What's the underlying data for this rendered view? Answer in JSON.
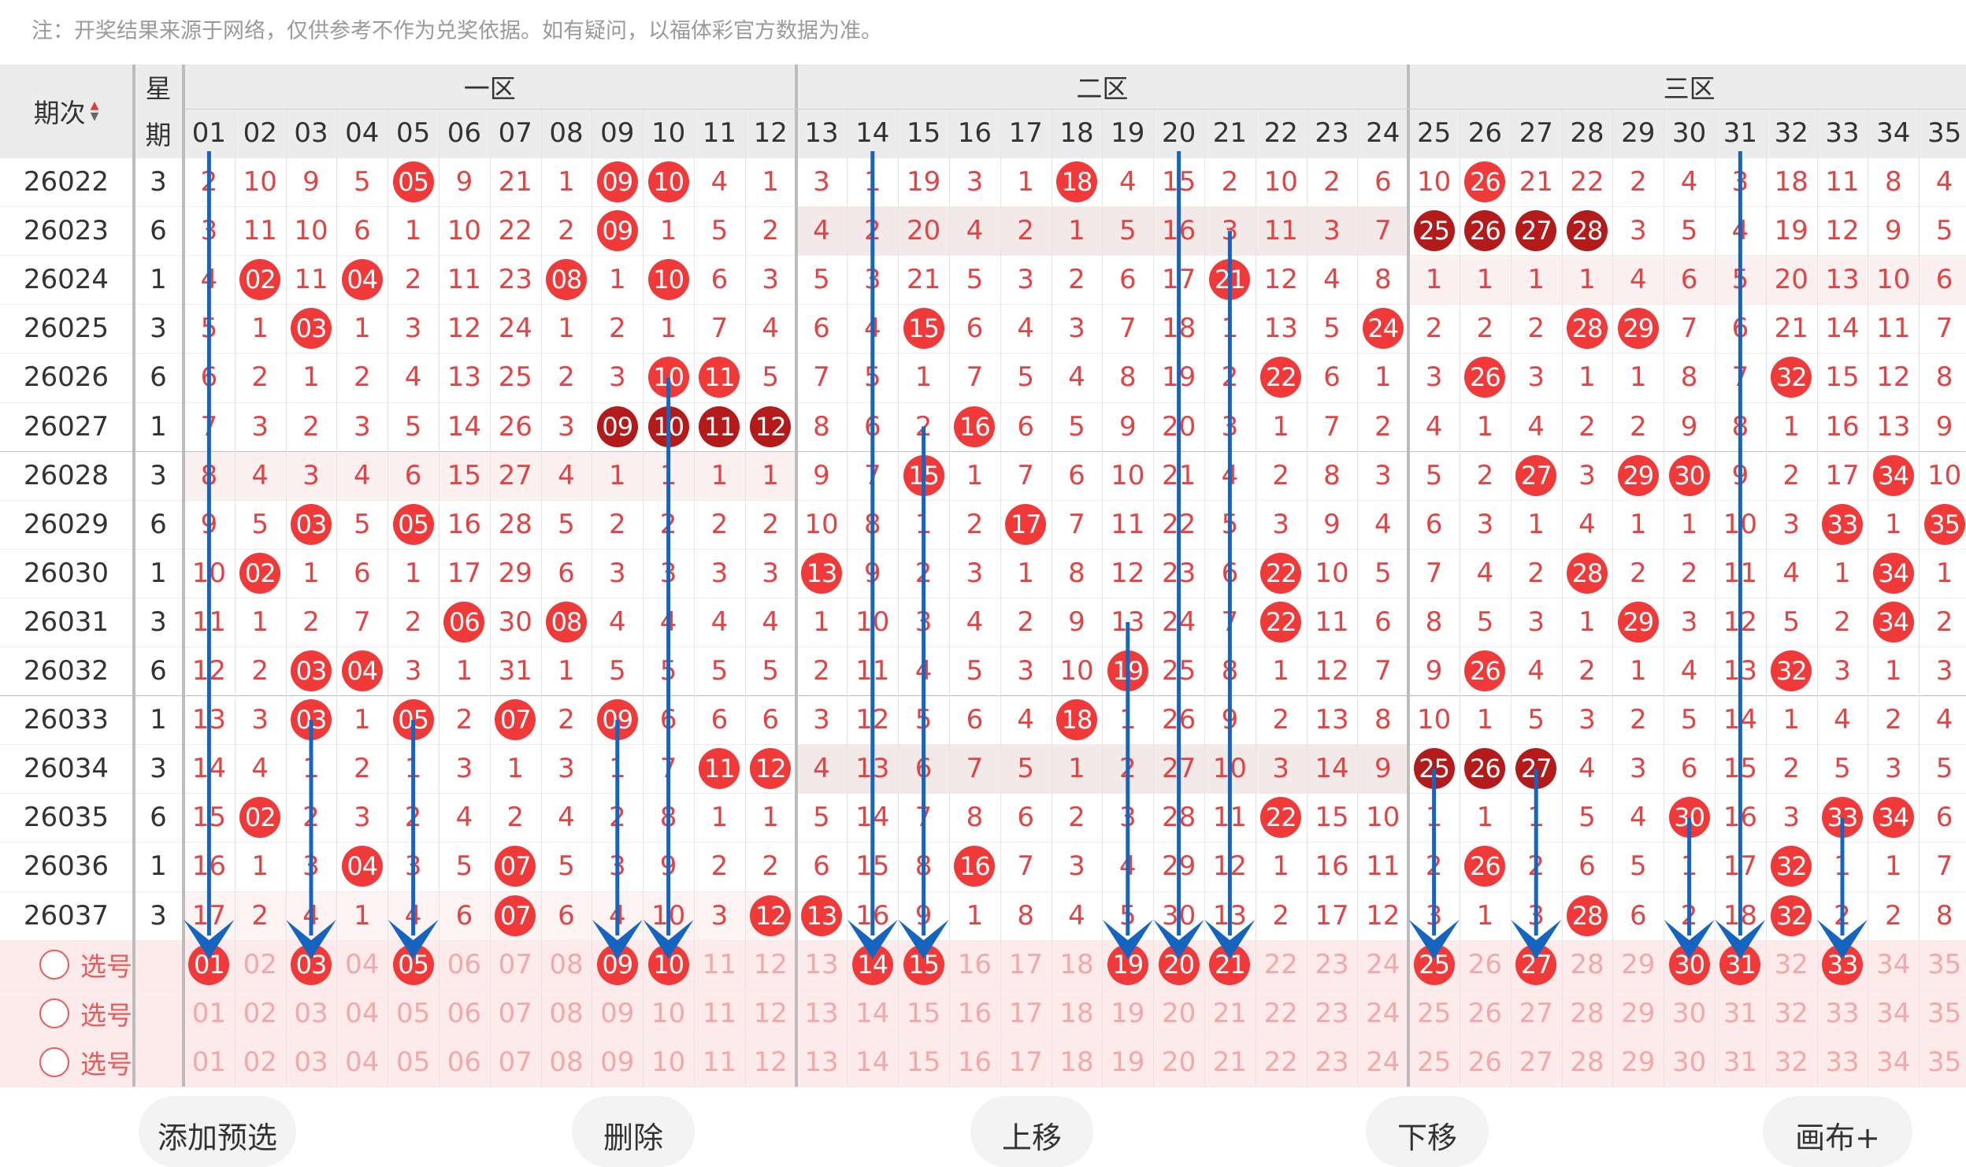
{
  "note": "注：开奖结果来源于网络，仅供参考不作为兑奖依据。如有疑问，以福体彩官方数据为准。",
  "header": {
    "period_label": "期次",
    "sort_icon": "sort-updown-icon",
    "week_label_top": "星",
    "week_label_bottom": "期",
    "zones": [
      "一区",
      "二区",
      "三区"
    ]
  },
  "columns": [
    "01",
    "02",
    "03",
    "04",
    "05",
    "06",
    "07",
    "08",
    "09",
    "10",
    "11",
    "12",
    "13",
    "14",
    "15",
    "16",
    "17",
    "18",
    "19",
    "20",
    "21",
    "22",
    "23",
    "24",
    "25",
    "26",
    "27",
    "28",
    "29",
    "30",
    "31",
    "32",
    "33",
    "34",
    "35"
  ],
  "rows": [
    {
      "period": "26022",
      "week": "3",
      "cells": [
        "2",
        "10",
        "9",
        "5",
        "05",
        "9",
        "21",
        "1",
        "09",
        "10",
        "4",
        "1",
        "3",
        "1",
        "19",
        "3",
        "1",
        "18",
        "4",
        "15",
        "2",
        "10",
        "2",
        "6",
        "10",
        "26",
        "21",
        "22",
        "2",
        "4",
        "3",
        "18",
        "11",
        "8",
        "4"
      ],
      "balls": [
        5,
        9,
        10,
        18,
        26
      ]
    },
    {
      "period": "26023",
      "week": "6",
      "cells": [
        "3",
        "11",
        "10",
        "6",
        "1",
        "10",
        "22",
        "2",
        "09",
        "1",
        "5",
        "2",
        "4",
        "2",
        "20",
        "4",
        "2",
        "1",
        "5",
        "16",
        "3",
        "11",
        "3",
        "7",
        "25",
        "26",
        "27",
        "28",
        "3",
        "5",
        "4",
        "19",
        "12",
        "9",
        "5"
      ],
      "balls": [
        9,
        25,
        26,
        27,
        28
      ]
    },
    {
      "period": "26024",
      "week": "1",
      "cells": [
        "4",
        "02",
        "11",
        "04",
        "2",
        "11",
        "23",
        "08",
        "1",
        "10",
        "6",
        "3",
        "5",
        "3",
        "21",
        "5",
        "3",
        "2",
        "6",
        "17",
        "21",
        "12",
        "4",
        "8",
        "1",
        "1",
        "1",
        "1",
        "4",
        "6",
        "5",
        "20",
        "13",
        "10",
        "6"
      ],
      "balls": [
        2,
        4,
        8,
        10,
        21
      ]
    },
    {
      "period": "26025",
      "week": "3",
      "cells": [
        "5",
        "1",
        "03",
        "1",
        "3",
        "12",
        "24",
        "1",
        "2",
        "1",
        "7",
        "4",
        "6",
        "4",
        "15",
        "6",
        "4",
        "3",
        "7",
        "18",
        "1",
        "13",
        "5",
        "24",
        "2",
        "2",
        "2",
        "28",
        "29",
        "7",
        "6",
        "21",
        "14",
        "11",
        "7"
      ],
      "balls": [
        3,
        15,
        24,
        28,
        29
      ]
    },
    {
      "period": "26026",
      "week": "6",
      "cells": [
        "6",
        "2",
        "1",
        "2",
        "4",
        "13",
        "25",
        "2",
        "3",
        "10",
        "11",
        "5",
        "7",
        "5",
        "1",
        "7",
        "5",
        "4",
        "8",
        "19",
        "2",
        "22",
        "6",
        "1",
        "3",
        "26",
        "3",
        "1",
        "1",
        "8",
        "7",
        "32",
        "15",
        "12",
        "8"
      ],
      "balls": [
        10,
        11,
        22,
        26,
        32
      ]
    },
    {
      "period": "26027",
      "week": "1",
      "cells": [
        "7",
        "3",
        "2",
        "3",
        "5",
        "14",
        "26",
        "3",
        "09",
        "10",
        "11",
        "12",
        "8",
        "6",
        "2",
        "16",
        "6",
        "5",
        "9",
        "20",
        "3",
        "1",
        "7",
        "2",
        "4",
        "1",
        "4",
        "2",
        "2",
        "9",
        "8",
        "1",
        "16",
        "13",
        "9"
      ],
      "balls": [
        9,
        10,
        11,
        12,
        16
      ]
    },
    {
      "period": "26028",
      "week": "3",
      "cells": [
        "8",
        "4",
        "3",
        "4",
        "6",
        "15",
        "27",
        "4",
        "1",
        "1",
        "1",
        "1",
        "9",
        "7",
        "15",
        "1",
        "7",
        "6",
        "10",
        "21",
        "4",
        "2",
        "8",
        "3",
        "5",
        "2",
        "27",
        "3",
        "29",
        "30",
        "9",
        "2",
        "17",
        "34",
        "10"
      ],
      "balls": [
        15,
        27,
        29,
        30,
        34
      ]
    },
    {
      "period": "26029",
      "week": "6",
      "cells": [
        "9",
        "5",
        "03",
        "5",
        "05",
        "16",
        "28",
        "5",
        "2",
        "2",
        "2",
        "2",
        "10",
        "8",
        "1",
        "2",
        "17",
        "7",
        "11",
        "22",
        "5",
        "3",
        "9",
        "4",
        "6",
        "3",
        "1",
        "4",
        "1",
        "1",
        "10",
        "3",
        "33",
        "1",
        "35"
      ],
      "balls": [
        3,
        5,
        17,
        33,
        35
      ]
    },
    {
      "period": "26030",
      "week": "1",
      "cells": [
        "10",
        "02",
        "1",
        "6",
        "1",
        "17",
        "29",
        "6",
        "3",
        "3",
        "3",
        "3",
        "13",
        "9",
        "2",
        "3",
        "1",
        "8",
        "12",
        "23",
        "6",
        "22",
        "10",
        "5",
        "7",
        "4",
        "2",
        "28",
        "2",
        "2",
        "11",
        "4",
        "1",
        "34",
        "1"
      ],
      "balls": [
        2,
        13,
        22,
        28,
        34
      ]
    },
    {
      "period": "26031",
      "week": "3",
      "cells": [
        "11",
        "1",
        "2",
        "7",
        "2",
        "06",
        "30",
        "08",
        "4",
        "4",
        "4",
        "4",
        "1",
        "10",
        "3",
        "4",
        "2",
        "9",
        "13",
        "24",
        "7",
        "22",
        "11",
        "6",
        "8",
        "5",
        "3",
        "1",
        "29",
        "3",
        "12",
        "5",
        "2",
        "34",
        "2"
      ],
      "balls": [
        6,
        8,
        22,
        29,
        34
      ]
    },
    {
      "period": "26032",
      "week": "6",
      "cells": [
        "12",
        "2",
        "03",
        "04",
        "3",
        "1",
        "31",
        "1",
        "5",
        "5",
        "5",
        "5",
        "2",
        "11",
        "4",
        "5",
        "3",
        "10",
        "19",
        "25",
        "8",
        "1",
        "12",
        "7",
        "9",
        "26",
        "4",
        "2",
        "1",
        "4",
        "13",
        "32",
        "3",
        "1",
        "3"
      ],
      "balls": [
        3,
        4,
        19,
        26,
        32
      ]
    },
    {
      "period": "26033",
      "week": "1",
      "cells": [
        "13",
        "3",
        "03",
        "1",
        "05",
        "2",
        "07",
        "2",
        "09",
        "6",
        "6",
        "6",
        "3",
        "12",
        "5",
        "6",
        "4",
        "18",
        "1",
        "26",
        "9",
        "2",
        "13",
        "8",
        "10",
        "1",
        "5",
        "3",
        "2",
        "5",
        "14",
        "1",
        "4",
        "2",
        "4"
      ],
      "balls": [
        3,
        5,
        7,
        9,
        18
      ]
    },
    {
      "period": "26034",
      "week": "3",
      "cells": [
        "14",
        "4",
        "1",
        "2",
        "1",
        "3",
        "1",
        "3",
        "1",
        "7",
        "11",
        "12",
        "4",
        "13",
        "6",
        "7",
        "5",
        "1",
        "2",
        "27",
        "10",
        "3",
        "14",
        "9",
        "25",
        "26",
        "27",
        "4",
        "3",
        "6",
        "15",
        "2",
        "5",
        "3",
        "5"
      ],
      "balls": [
        11,
        12,
        25,
        26,
        27
      ]
    },
    {
      "period": "26035",
      "week": "6",
      "cells": [
        "15",
        "02",
        "2",
        "3",
        "2",
        "4",
        "2",
        "4",
        "2",
        "8",
        "1",
        "1",
        "5",
        "14",
        "7",
        "8",
        "6",
        "2",
        "3",
        "28",
        "11",
        "22",
        "15",
        "10",
        "1",
        "1",
        "1",
        "5",
        "4",
        "30",
        "16",
        "3",
        "33",
        "34",
        "6"
      ],
      "balls": [
        2,
        22,
        30,
        33,
        34
      ]
    },
    {
      "period": "26036",
      "week": "1",
      "cells": [
        "16",
        "1",
        "3",
        "04",
        "3",
        "5",
        "07",
        "5",
        "3",
        "9",
        "2",
        "2",
        "6",
        "15",
        "8",
        "16",
        "7",
        "3",
        "4",
        "29",
        "12",
        "1",
        "16",
        "11",
        "2",
        "26",
        "2",
        "6",
        "5",
        "1",
        "17",
        "32",
        "1",
        "1",
        "7"
      ],
      "balls": [
        4,
        7,
        16,
        26,
        32
      ]
    },
    {
      "period": "26037",
      "week": "3",
      "cells": [
        "17",
        "2",
        "4",
        "1",
        "4",
        "6",
        "07",
        "6",
        "4",
        "10",
        "3",
        "12",
        "13",
        "16",
        "9",
        "1",
        "8",
        "4",
        "5",
        "30",
        "13",
        "2",
        "17",
        "12",
        "3",
        "1",
        "3",
        "28",
        "6",
        "2",
        "18",
        "32",
        "2",
        "2",
        "8"
      ],
      "balls": [
        7,
        12,
        13,
        28,
        32
      ]
    }
  ],
  "pick_rows": [
    {
      "label": "选号",
      "selected": [
        1,
        3,
        5,
        9,
        10,
        14,
        15,
        19,
        20,
        21,
        25,
        27,
        30,
        31,
        33
      ]
    },
    {
      "label": "选号",
      "selected": []
    },
    {
      "label": "选号",
      "selected": []
    }
  ],
  "toolbar": {
    "add_label": "添加预选",
    "delete_label": "删除",
    "up_label": "上移",
    "down_label": "下移",
    "draw_label": "画布+"
  },
  "colors": {
    "ball_red": "#f03a3a",
    "ball_dark": "#b31a1a",
    "number_text": "#e24444",
    "arrow": "#1565c0",
    "header_bg": "#ececec",
    "pick_bg": "#fdeaea"
  }
}
